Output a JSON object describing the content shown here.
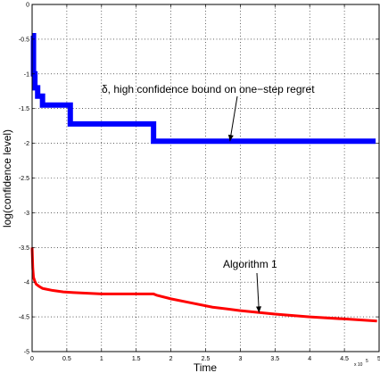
{
  "chart_data": {
    "type": "line",
    "xlabel": "Time",
    "ylabel": "log(confidence level)",
    "xlim": [
      0,
      5
    ],
    "ylim": [
      -5,
      0
    ],
    "x_exponent_label": "x 10",
    "x_exponent_power": "5",
    "xticks": [
      0,
      0.5,
      1,
      1.5,
      2,
      2.5,
      3,
      3.5,
      4,
      4.5,
      5
    ],
    "yticks": [
      0,
      -0.5,
      -1,
      -1.5,
      -2,
      -2.5,
      -3,
      -3.5,
      -4,
      -4.5,
      -5
    ],
    "xtick_labels": [
      "0",
      "0.5",
      "1",
      "1.5",
      "2",
      "2.5",
      "3",
      "3.5",
      "4",
      "4.5",
      "5"
    ],
    "ytick_labels": [
      "0",
      "-0.5",
      "-1",
      "-1.5",
      "-2",
      "-2.5",
      "-3",
      "-3.5",
      "-4",
      "-4.5",
      "-5"
    ],
    "grid": true,
    "series": [
      {
        "color": "#0000ff",
        "step": true,
        "x": [
          0,
          0.02,
          0.04,
          0.08,
          0.15,
          0.55,
          1.75,
          4.95
        ],
        "y": [
          -0.45,
          -1.0,
          -1.2,
          -1.32,
          -1.45,
          -1.72,
          -1.97,
          -1.97
        ]
      },
      {
        "color": "#ff0000",
        "step": false,
        "x": [
          0.0,
          0.01,
          0.02,
          0.04,
          0.06,
          0.1,
          0.15,
          0.2,
          0.3,
          0.45,
          0.6,
          0.8,
          1.0,
          1.2,
          1.5,
          1.75,
          1.8,
          2.0,
          2.3,
          2.6,
          3.0,
          3.5,
          4.0,
          4.5,
          4.97
        ],
        "y": [
          -3.5,
          -3.8,
          -3.93,
          -3.99,
          -4.03,
          -4.06,
          -4.09,
          -4.1,
          -4.12,
          -4.14,
          -4.15,
          -4.16,
          -4.17,
          -4.17,
          -4.17,
          -4.17,
          -4.19,
          -4.24,
          -4.3,
          -4.36,
          -4.41,
          -4.46,
          -4.5,
          -4.53,
          -4.56
        ]
      }
    ],
    "annotations": [
      {
        "text": "δ, high confidence bound on one−step regret",
        "arrow_to": [
          2.85,
          -1.97
        ]
      },
      {
        "text": "Algorithm 1",
        "arrow_to": [
          3.27,
          -4.44
        ]
      }
    ]
  }
}
